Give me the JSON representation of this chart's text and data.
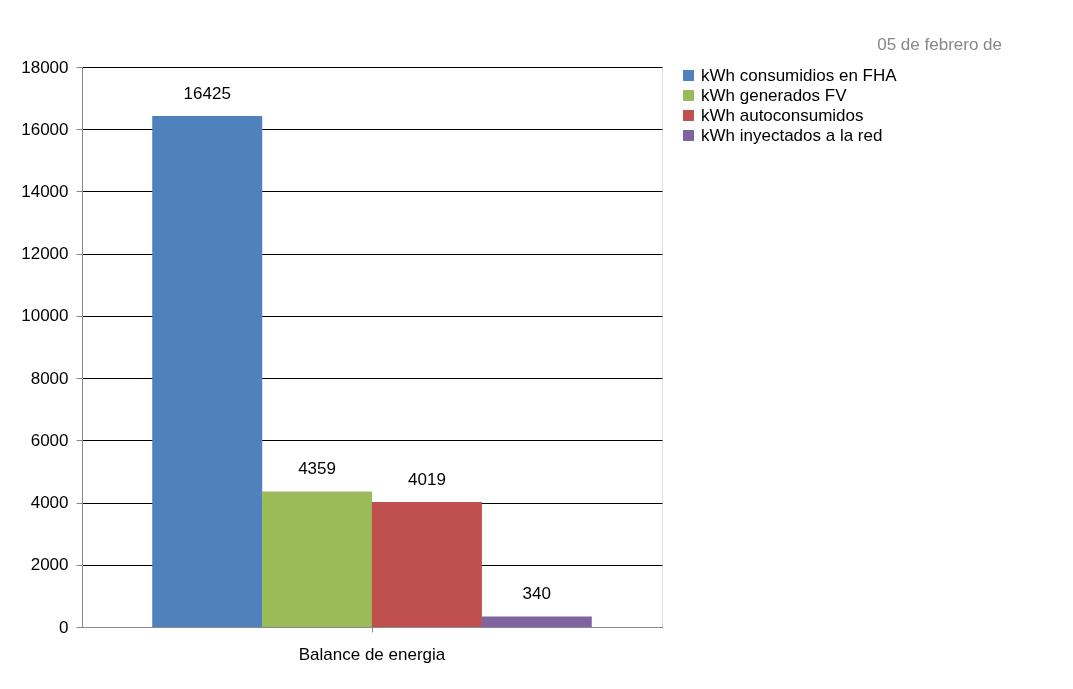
{
  "chart_data": {
    "type": "bar",
    "categories": [
      "Balance de energia"
    ],
    "series": [
      {
        "name": "kWh consumidios en FHA",
        "color": "#4f81bd",
        "values": [
          16425
        ]
      },
      {
        "name": "kWh generados FV",
        "color": "#9bbb59",
        "values": [
          4359
        ]
      },
      {
        "name": "kWh autoconsumidos",
        "color": "#c0504d",
        "values": [
          4019
        ]
      },
      {
        "name": "kWh inyectados a la red",
        "color": "#8064a2",
        "values": [
          340
        ]
      }
    ],
    "ylim": [
      0,
      18000
    ],
    "yticks": [
      0,
      2000,
      4000,
      6000,
      8000,
      10000,
      12000,
      14000,
      16000,
      18000
    ],
    "grid": "y",
    "legend": "right",
    "data_labels": true,
    "annotations": [
      "05 de febrero de"
    ]
  }
}
